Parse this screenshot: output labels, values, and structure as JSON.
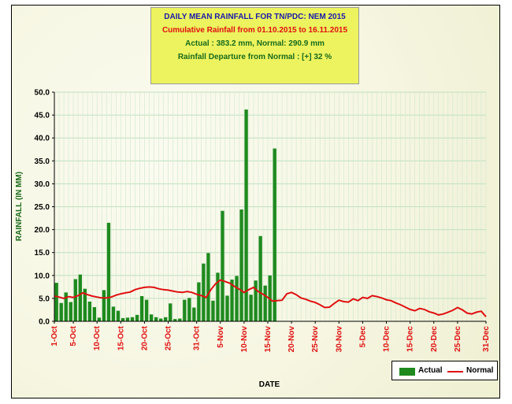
{
  "title": {
    "line1": "DAILY MEAN RAINFALL FOR TN/PDC: NEM 2015",
    "line2": "Cumulative Rainfall from 01.10.2015 to 16.11.2015",
    "line3": "Actual : 383.2 mm,  Normal:  290.9 mm",
    "line4": "Rainfall Departure from Normal :  [+] 32 %"
  },
  "chart_data": {
    "type": "bar",
    "title": "DAILY MEAN RAINFALL FOR TN/PDC: NEM 2015",
    "xlabel": "DATE",
    "ylabel": "RAINFALL (IN MM)",
    "ylim": [
      0,
      50
    ],
    "y_ticks": [
      "0.0",
      "5.0",
      "10.0",
      "15.0",
      "20.0",
      "25.0",
      "30.0",
      "35.0",
      "40.0",
      "45.0",
      "50.0"
    ],
    "x_tick_labels": [
      "1-Oct",
      "5-Oct",
      "10-Oct",
      "15-Oct",
      "20-Oct",
      "25-Oct",
      "31-Oct",
      "5-Nov",
      "10-Nov",
      "15-Nov",
      "20-Nov",
      "25-Nov",
      "30-Nov",
      "5-Dec",
      "10-Dec",
      "15-Dec",
      "20-Dec",
      "25-Dec",
      "31-Dec"
    ],
    "x_tick_day_index": [
      0,
      4,
      9,
      14,
      19,
      24,
      30,
      35,
      40,
      45,
      50,
      55,
      60,
      65,
      70,
      75,
      80,
      85,
      91
    ],
    "total_days": 92,
    "grid": true,
    "legend_position": "bottom-right",
    "series": [
      {
        "name": "Actual",
        "kind": "bar",
        "color": "#1e8a1e",
        "values": [
          8.4,
          4.0,
          6.3,
          4.2,
          9.2,
          10.2,
          7.1,
          4.3,
          3.1,
          0.8,
          6.8,
          21.5,
          3.2,
          2.3,
          0.7,
          0.8,
          0.9,
          1.4,
          5.5,
          4.7,
          1.5,
          0.9,
          0.6,
          0.9,
          3.9,
          0.5,
          0.6,
          4.7,
          5.1,
          3.0,
          8.5,
          12.6,
          14.9,
          4.5,
          10.6,
          24.1,
          5.6,
          9.1,
          9.9,
          24.4,
          46.2,
          5.8,
          8.9,
          18.6,
          7.8,
          10.0,
          37.7
        ]
      },
      {
        "name": "Normal",
        "kind": "line",
        "color": "#e01010",
        "values": [
          5.5,
          5.3,
          5.0,
          5.4,
          5.2,
          5.6,
          6.2,
          5.8,
          5.5,
          5.3,
          5.1,
          5.1,
          5.3,
          5.7,
          6.0,
          6.2,
          6.4,
          6.9,
          7.2,
          7.4,
          7.5,
          7.4,
          7.1,
          6.9,
          6.8,
          6.6,
          6.4,
          6.3,
          6.5,
          6.3,
          5.9,
          5.6,
          5.2,
          6.9,
          8.2,
          9.0,
          8.7,
          8.3,
          7.6,
          7.0,
          6.3,
          6.9,
          7.4,
          6.5,
          5.9,
          5.2,
          4.4,
          4.5,
          4.6,
          6.0,
          6.3,
          5.8,
          5.1,
          4.8,
          4.4,
          4.1,
          3.6,
          3.0,
          3.1,
          3.9,
          4.6,
          4.3,
          4.2,
          4.9,
          4.5,
          5.2,
          5.0,
          5.6,
          5.4,
          5.1,
          4.7,
          4.5,
          4.0,
          3.6,
          3.1,
          2.6,
          2.3,
          2.8,
          2.6,
          2.1,
          1.8,
          1.4,
          1.6,
          2.0,
          2.4,
          3.0,
          2.5,
          1.8,
          1.6,
          2.0,
          2.2,
          1.0
        ]
      }
    ]
  },
  "legend": {
    "actual_label": "Actual",
    "normal_label": "Normal"
  }
}
